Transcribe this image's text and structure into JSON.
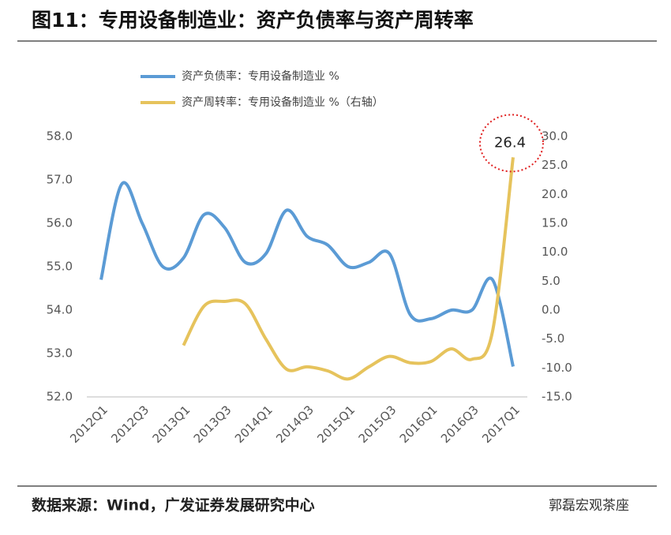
{
  "chart_data": {
    "type": "line",
    "title": "图11：专用设备制造业：资产负债率与资产周转率",
    "source": "数据来源：Wind，广发证券发展研究中心",
    "watermark": "郭磊宏观茶座",
    "categories": [
      "2012Q1",
      null,
      "2012Q3",
      null,
      "2013Q1",
      null,
      "2013Q3",
      null,
      "2014Q1",
      null,
      "2014Q3",
      null,
      "2015Q1",
      null,
      "2015Q3",
      null,
      "2016Q1",
      null,
      "2016Q3",
      null,
      "2017Q1"
    ],
    "series": [
      {
        "name": "资产负债率：专用设备制造业 %",
        "color": "#5b9bd5",
        "values": [
          54.7,
          56.9,
          56.0,
          55.0,
          55.2,
          56.2,
          55.9,
          55.1,
          55.3,
          56.3,
          55.7,
          55.5,
          55.0,
          55.1,
          55.3,
          53.9,
          53.8,
          54.0,
          54.0,
          54.7,
          52.7
        ]
      },
      {
        "name": "资产周转率：专用设备制造业 %（右轴）",
        "color": "#e6c35c",
        "axis": "y2",
        "values": [
          null,
          null,
          null,
          null,
          -6.1,
          0.7,
          1.5,
          1.1,
          -5.0,
          -10.2,
          -9.8,
          -10.5,
          -11.9,
          -9.8,
          -8.0,
          -9.1,
          -8.9,
          -6.7,
          -8.5,
          -3.7,
          26.4
        ],
        "value_labels": [
          null,
          null,
          null,
          null,
          null,
          null,
          null,
          null,
          null,
          null,
          null,
          null,
          null,
          null,
          null,
          null,
          null,
          null,
          null,
          null,
          "26.4"
        ]
      }
    ],
    "ylim": [
      52,
      58
    ],
    "yticks": [
      {
        "value": 52,
        "label": "52.0"
      },
      {
        "value": 53,
        "label": "53.0"
      },
      {
        "value": 54,
        "label": "54.0"
      },
      {
        "value": 55,
        "label": "55.0"
      },
      {
        "value": 56,
        "label": "56.0"
      },
      {
        "value": 57,
        "label": "57.0"
      },
      {
        "value": 58,
        "label": "58.0"
      }
    ],
    "y2lim": [
      -15,
      30
    ],
    "y2ticks": [
      {
        "value": -15,
        "label": "-15.0"
      },
      {
        "value": -10,
        "label": "-10.0"
      },
      {
        "value": -5,
        "label": "-5.0"
      },
      {
        "value": 0,
        "label": "0.0"
      },
      {
        "value": 5,
        "label": "5.0"
      },
      {
        "value": 10,
        "label": "10.0"
      },
      {
        "value": 15,
        "label": "15.0"
      },
      {
        "value": 20,
        "label": "20.0"
      },
      {
        "value": 25,
        "label": "25.0"
      },
      {
        "value": 30,
        "label": "30.0"
      }
    ],
    "grid": false
  }
}
